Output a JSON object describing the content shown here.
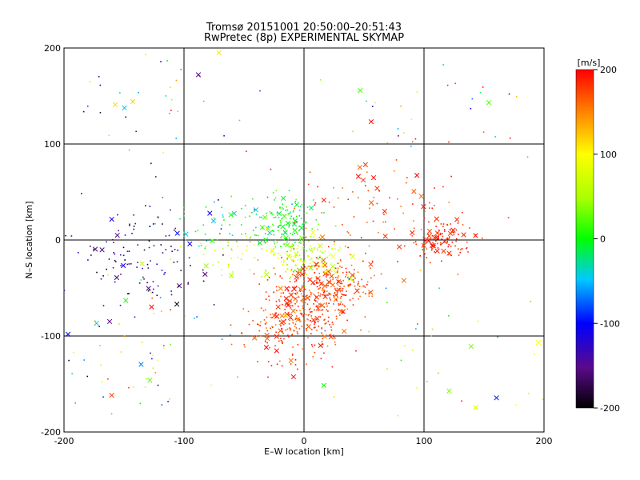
{
  "chart_data": {
    "type": "scatter",
    "title": "Tromsø 20151001 20:50:00–20:51:43",
    "subtitle": "RwPretec (8p) EXPERIMENTAL SKYMAP",
    "xlabel": "E–W location [km]",
    "ylabel": "N–S location [km]",
    "xlim": [
      -200,
      200
    ],
    "ylim": [
      -200,
      200
    ],
    "xticks": [
      "-200",
      "-100",
      "0",
      "100",
      "200"
    ],
    "yticks": [
      "-200",
      "-100",
      "0",
      "100",
      "200"
    ],
    "grid": true,
    "colorbar": {
      "label": "[m/s]",
      "range": [
        -200,
        200
      ],
      "ticks": [
        "200",
        "100",
        "0",
        "-100",
        "-200"
      ],
      "placement": "right"
    },
    "marker_types": [
      "dot",
      "x"
    ],
    "clusters": [
      {
        "cx": 0,
        "cy": -70,
        "sx": 18,
        "sy": 25,
        "n": 340,
        "vmin": 150,
        "vmax": 200
      },
      {
        "cx": 30,
        "cy": -50,
        "sx": 15,
        "sy": 12,
        "n": 140,
        "vmin": 150,
        "vmax": 200
      },
      {
        "cx": -15,
        "cy": 15,
        "sx": 12,
        "sy": 15,
        "n": 140,
        "vmin": -30,
        "vmax": 30
      },
      {
        "cx": 5,
        "cy": -15,
        "sx": 15,
        "sy": 12,
        "n": 110,
        "vmin": 30,
        "vmax": 110
      },
      {
        "cx": 115,
        "cy": 0,
        "sx": 12,
        "sy": 10,
        "n": 110,
        "vmin": 170,
        "vmax": 200
      },
      {
        "cx": 60,
        "cy": 30,
        "sx": 45,
        "sy": 40,
        "n": 120,
        "vmin": 150,
        "vmax": 200
      },
      {
        "cx": -140,
        "cy": -15,
        "sx": 35,
        "sy": 25,
        "n": 130,
        "vmin": -200,
        "vmax": -100
      },
      {
        "cx": -70,
        "cy": 20,
        "sx": 25,
        "sy": 15,
        "n": 60,
        "vmin": -60,
        "vmax": 20
      },
      {
        "cx": -55,
        "cy": -20,
        "sx": 25,
        "sy": 12,
        "n": 50,
        "vmin": 40,
        "vmax": 110
      },
      {
        "cx": -150,
        "cy": -110,
        "sx": 40,
        "sy": 45,
        "n": 70,
        "vmin": -200,
        "vmax": 200
      },
      {
        "cx": -120,
        "cy": 150,
        "sx": 40,
        "sy": 35,
        "n": 40,
        "vmin": -200,
        "vmax": 200
      },
      {
        "cx": 100,
        "cy": -130,
        "sx": 60,
        "sy": 40,
        "n": 40,
        "vmin": -100,
        "vmax": 200
      },
      {
        "cx": 120,
        "cy": 140,
        "sx": 50,
        "sy": 40,
        "n": 30,
        "vmin": -200,
        "vmax": 200
      },
      {
        "cx": -20,
        "cy": -100,
        "sx": 20,
        "sy": 20,
        "n": 50,
        "vmin": 150,
        "vmax": 200
      }
    ]
  }
}
